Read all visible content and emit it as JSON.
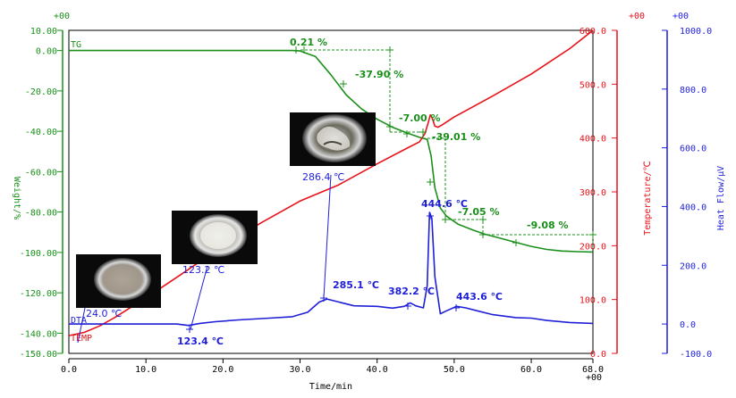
{
  "chart_data": {
    "type": "line",
    "xlabel": "Time/min",
    "x_exponent": "+00",
    "xlim": [
      0,
      68
    ],
    "x_ticks": [
      "0.0",
      "10.0",
      "20.0",
      "30.0",
      "40.0",
      "50.0",
      "60.0",
      "68.0"
    ],
    "x_tick_values": [
      0,
      10,
      20,
      30,
      40,
      50,
      60,
      68
    ],
    "axes": {
      "weight": {
        "label": "Weight/%",
        "exponent": "+00",
        "color": "#1a8f1a",
        "range": [
          -150,
          10
        ],
        "ticks": [
          "10.00",
          "0.00",
          "-20.00",
          "-40.00",
          "-60.00",
          "-80.00",
          "-100.00",
          "-120.00",
          "-140.00",
          "-150.00"
        ],
        "tick_values": [
          10,
          0,
          -20,
          -40,
          -60,
          -80,
          -100,
          -120,
          -140,
          -150
        ]
      },
      "temperature": {
        "label": "Temperature/℃",
        "exponent": "+00",
        "color": "#e8121a",
        "range": [
          0,
          600
        ],
        "ticks": [
          "600.0",
          "500.0",
          "400.0",
          "300.0",
          "200.0",
          "100.0",
          "0.0"
        ],
        "tick_values": [
          600,
          500,
          400,
          300,
          200,
          100,
          0
        ]
      },
      "heatflow": {
        "label": "Heat Flow/μV",
        "exponent": "+00",
        "color": "#1f1fd8",
        "range": [
          -100,
          1000
        ],
        "ticks": [
          "1000.0",
          "800.0",
          "600.0",
          "400.0",
          "200.0",
          "0.0",
          "-100.0"
        ],
        "tick_values": [
          1000,
          800,
          600,
          400,
          200,
          0,
          -100
        ]
      }
    },
    "series": [
      {
        "name": "TG",
        "axis": "weight",
        "color": "#1a8f1a",
        "points": [
          [
            0,
            0
          ],
          [
            10,
            0
          ],
          [
            20,
            0
          ],
          [
            29,
            0
          ],
          [
            30,
            -0.2
          ],
          [
            32,
            -3
          ],
          [
            34,
            -12
          ],
          [
            36,
            -22
          ],
          [
            38,
            -29
          ],
          [
            40,
            -34
          ],
          [
            42,
            -38
          ],
          [
            44,
            -41
          ],
          [
            45.5,
            -43
          ],
          [
            46.5,
            -44
          ],
          [
            47,
            -52
          ],
          [
            47.5,
            -68
          ],
          [
            48.2,
            -78
          ],
          [
            49,
            -82
          ],
          [
            50.5,
            -86
          ],
          [
            52.5,
            -89
          ],
          [
            54,
            -91
          ],
          [
            56,
            -93
          ],
          [
            58,
            -95
          ],
          [
            60,
            -97
          ],
          [
            62,
            -98.5
          ],
          [
            64,
            -99.3
          ],
          [
            66,
            -99.6
          ],
          [
            68,
            -99.8
          ]
        ]
      },
      {
        "name": "TEMP",
        "axis": "temperature",
        "color": "#e8121a",
        "points": [
          [
            0,
            33
          ],
          [
            2,
            39
          ],
          [
            4,
            51
          ],
          [
            6,
            67
          ],
          [
            8,
            85
          ],
          [
            10,
            103
          ],
          [
            15,
            151
          ],
          [
            20,
            200
          ],
          [
            25,
            243
          ],
          [
            30,
            283
          ],
          [
            35,
            313
          ],
          [
            40,
            352
          ],
          [
            44,
            382
          ],
          [
            45.5,
            393
          ],
          [
            46.2,
            408
          ],
          [
            46.6,
            427
          ],
          [
            46.9,
            443
          ],
          [
            47.15,
            437
          ],
          [
            47.5,
            422
          ],
          [
            47.9,
            420
          ],
          [
            48.5,
            425
          ],
          [
            50,
            439
          ],
          [
            55,
            478
          ],
          [
            60,
            519
          ],
          [
            65,
            566
          ],
          [
            68,
            600
          ]
        ]
      },
      {
        "name": "DTA",
        "axis": "heatflow",
        "color": "#1f1fd8",
        "points": [
          [
            0,
            0
          ],
          [
            8,
            0
          ],
          [
            14,
            0
          ],
          [
            15.5,
            -5
          ],
          [
            17,
            2
          ],
          [
            19,
            8
          ],
          [
            22,
            14
          ],
          [
            26,
            20
          ],
          [
            29,
            25
          ],
          [
            31,
            40
          ],
          [
            32.5,
            75
          ],
          [
            33.5,
            85
          ],
          [
            35,
            75
          ],
          [
            37,
            62
          ],
          [
            40,
            60
          ],
          [
            42,
            54
          ],
          [
            43.5,
            60
          ],
          [
            44.3,
            72
          ],
          [
            45,
            62
          ],
          [
            46,
            55
          ],
          [
            46.5,
            130
          ],
          [
            46.8,
            380
          ],
          [
            47.1,
            360
          ],
          [
            47.5,
            160
          ],
          [
            48.2,
            35
          ],
          [
            49,
            45
          ],
          [
            50.3,
            60
          ],
          [
            51.5,
            55
          ],
          [
            53,
            45
          ],
          [
            55,
            32
          ],
          [
            58,
            22
          ],
          [
            60,
            20
          ],
          [
            62,
            12
          ],
          [
            65,
            5
          ],
          [
            68,
            2
          ]
        ]
      }
    ],
    "annotations": [
      {
        "text": "0.21 %",
        "color": "#1a8f1a"
      },
      {
        "text": "-37.90 %",
        "color": "#1a8f1a"
      },
      {
        "text": "-7.00 %",
        "color": "#1a8f1a"
      },
      {
        "text": "-39.01 %",
        "color": "#1a8f1a"
      },
      {
        "text": "-7.05 %",
        "color": "#1a8f1a"
      },
      {
        "text": "-9.08 %",
        "color": "#1a8f1a"
      },
      {
        "text": "285.1 ℃",
        "color": "#1f1fd8"
      },
      {
        "text": "382.2 ℃",
        "color": "#1f1fd8"
      },
      {
        "text": "444.6 ℃",
        "color": "#1f1fd8"
      },
      {
        "text": "443.6 ℃",
        "color": "#1f1fd8"
      },
      {
        "text": "123.4 ℃",
        "color": "#1f1fd8"
      },
      {
        "text": "24.0 ℃",
        "color": "#1f1fd8"
      },
      {
        "text": "123.2 ℃",
        "color": "#1f1fd8"
      },
      {
        "text": "286.4 ℃",
        "color": "#1f1fd8"
      }
    ],
    "series_labels": {
      "tg": "TG",
      "dta": "DTA",
      "temp": "TEMP"
    },
    "grid": false
  }
}
